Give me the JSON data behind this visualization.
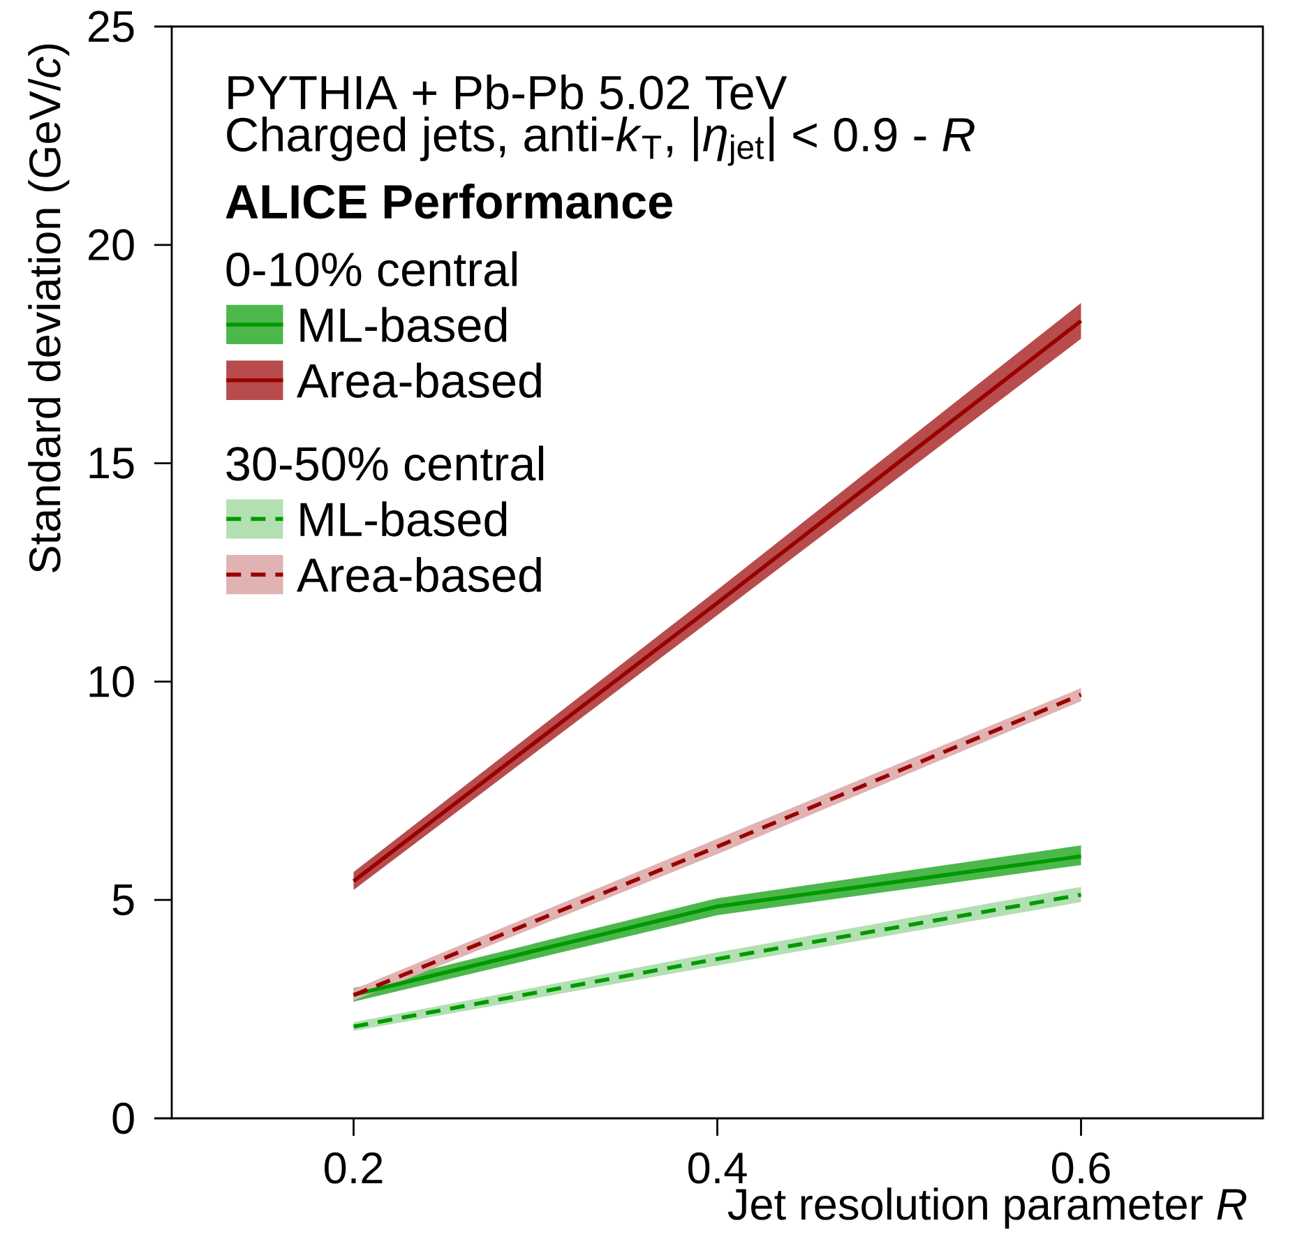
{
  "chart_data": {
    "type": "line",
    "xlabel": "Jet resolution parameter *R*",
    "ylabel": "Standard deviation (GeV/*c*)",
    "x": [
      0.2,
      0.4,
      0.6
    ],
    "xlim": [
      0.1,
      0.7
    ],
    "ylim": [
      0,
      25
    ],
    "xticks": [
      0.2,
      0.4,
      0.6
    ],
    "yticks": [
      0,
      5,
      10,
      15,
      20,
      25
    ],
    "legend": "top left",
    "grid": false,
    "annotations": [
      "PYTHIA + Pb-Pb 5.02 TeV",
      "Charged jets, anti-*k*$_{T}$, |*η*$_{jet}$| < 0.9 - *R*",
      "ALICE Performance",
      "0-10% central",
      "30-50% central"
    ],
    "series": [
      {
        "name": "ML-based",
        "color": "#009900",
        "line_style": "solid",
        "values": [
          2.83,
          4.85,
          6.0
        ],
        "lower": [
          2.67,
          4.65,
          5.8
        ],
        "upper": [
          2.98,
          5.04,
          6.25
        ]
      },
      {
        "name": "Area-based",
        "color": "#990000",
        "line_style": "solid",
        "values": [
          5.43,
          11.8,
          18.26
        ],
        "lower": [
          5.23,
          11.52,
          17.85
        ],
        "upper": [
          5.64,
          12.1,
          18.67
        ]
      },
      {
        "name": "ML-based",
        "color": "#009900",
        "line_style": "dashed",
        "values": [
          2.1,
          3.65,
          5.12
        ],
        "lower": [
          2.0,
          3.5,
          4.95
        ],
        "upper": [
          2.2,
          3.8,
          5.3
        ]
      },
      {
        "name": "Area-based",
        "color": "#990000",
        "line_style": "dashed",
        "values": [
          2.82,
          6.22,
          9.7
        ],
        "lower": [
          2.7,
          6.05,
          9.55
        ],
        "upper": [
          2.95,
          6.4,
          9.85
        ]
      }
    ]
  }
}
